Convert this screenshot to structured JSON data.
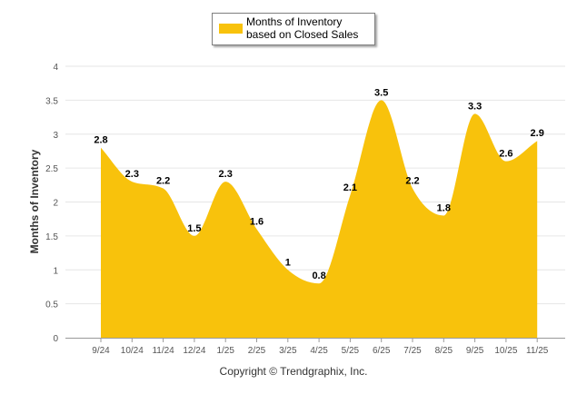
{
  "chart_data": {
    "type": "area",
    "categories": [
      "9/24",
      "10/24",
      "11/24",
      "12/24",
      "1/25",
      "2/25",
      "3/25",
      "4/25",
      "5/25",
      "6/25",
      "7/25",
      "8/25",
      "9/25",
      "10/25",
      "11/25"
    ],
    "series": [
      {
        "name": "Months of Inventory based on Closed Sales",
        "values": [
          2.8,
          2.3,
          2.2,
          1.5,
          2.3,
          1.6,
          1,
          0.8,
          2.1,
          3.5,
          2.2,
          1.8,
          3.3,
          2.6,
          2.9
        ],
        "color": "#f8c20c"
      }
    ],
    "data_labels": [
      "2.8",
      "2.3",
      "2.2",
      "1.5",
      "2.3",
      "1.6",
      "1",
      "0.8",
      "2.1",
      "3.5",
      "2.2",
      "1.8",
      "3.3",
      "2.6",
      "2.9"
    ],
    "title": "",
    "xlabel": "",
    "ylabel": "Months of Inventory",
    "ylim": [
      0,
      4
    ],
    "yticks": [
      "0",
      "0.5",
      "1",
      "1.5",
      "2",
      "2.5",
      "3",
      "3.5",
      "4"
    ],
    "grid": true,
    "legend": "top-center"
  },
  "legend": {
    "label": "Months of Inventory based on Closed Sales",
    "color": "#f8c20c"
  },
  "footer": {
    "copyright": "Copyright © Trendgraphix, Inc."
  }
}
